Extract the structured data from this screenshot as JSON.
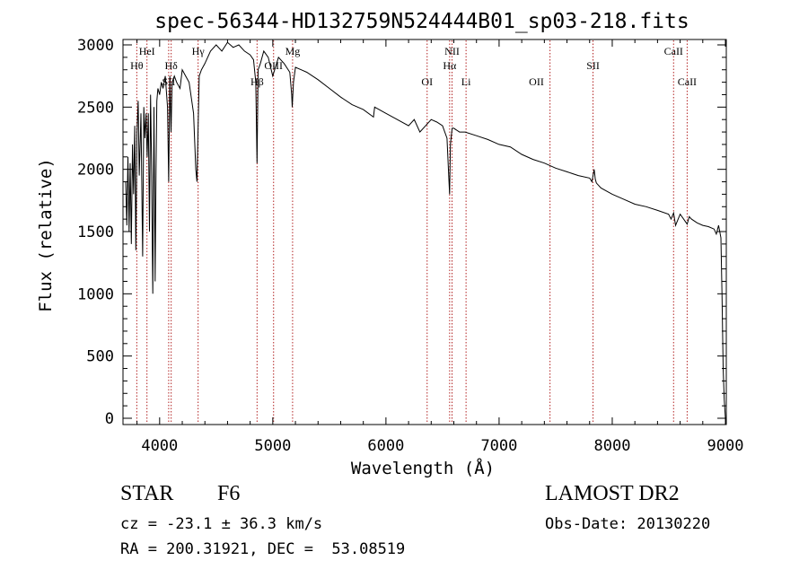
{
  "chart_data": {
    "type": "line",
    "title": "spec-56344-HD132759N524444B01_sp03-218.fits",
    "xlabel": "Wavelength (Å)",
    "ylabel": "Flux (relative)",
    "xlim": [
      3700,
      9000
    ],
    "ylim": [
      0,
      3000
    ],
    "xticks": [
      "4000",
      "5000",
      "6000",
      "7000",
      "8000",
      "9000"
    ],
    "yticks": [
      "0",
      "500",
      "1000",
      "1500",
      "2000",
      "2500",
      "3000"
    ],
    "grid": false,
    "series": [
      {
        "x": [
          3700,
          3710,
          3720,
          3730,
          3740,
          3750,
          3760,
          3770,
          3780,
          3790,
          3800,
          3810,
          3820,
          3835,
          3850,
          3860,
          3870,
          3880,
          3890,
          3900,
          3910,
          3920,
          3930,
          3935,
          3940,
          3950,
          3960,
          3968,
          3975,
          3985,
          4000,
          4015,
          4030,
          4050,
          4070,
          4080,
          4090,
          4101,
          4110,
          4130,
          4150,
          4180,
          4200,
          4230,
          4260,
          4300,
          4320,
          4330,
          4340,
          4350,
          4370,
          4400,
          4450,
          4500,
          4550,
          4600,
          4650,
          4700,
          4750,
          4800,
          4830,
          4850,
          4861,
          4870,
          4890,
          4920,
          4960,
          5000,
          5050,
          5100,
          5150,
          5167,
          5172,
          5183,
          5200,
          5250,
          5300,
          5400,
          5500,
          5600,
          5700,
          5800,
          5890,
          5900,
          6000,
          6100,
          6200,
          6250,
          6300,
          6400,
          6450,
          6500,
          6540,
          6555,
          6563,
          6570,
          6585,
          6600,
          6650,
          6700,
          6800,
          6900,
          7000,
          7100,
          7200,
          7300,
          7400,
          7500,
          7600,
          7700,
          7800,
          7820,
          7840,
          7850,
          7860,
          7900,
          8000,
          8100,
          8200,
          8300,
          8400,
          8498,
          8520,
          8542,
          8560,
          8600,
          8662,
          8680,
          8700,
          8750,
          8800,
          8850,
          8900,
          8920,
          8940,
          8960,
          8970,
          8980,
          8990,
          9000
        ],
        "y": [
          1900,
          1550,
          2100,
          1500,
          2050,
          1400,
          2200,
          1800,
          2350,
          1350,
          2300,
          2550,
          1950,
          2450,
          1300,
          2500,
          2250,
          2450,
          2100,
          2450,
          1500,
          2600,
          1950,
          1400,
          1000,
          2500,
          1100,
          2000,
          2550,
          2650,
          2600,
          2700,
          2650,
          2750,
          2500,
          1900,
          2750,
          2300,
          2700,
          2750,
          2700,
          2650,
          2800,
          2750,
          2700,
          2450,
          2000,
          1900,
          2350,
          2750,
          2800,
          2850,
          2950,
          3000,
          2950,
          3020,
          2980,
          3000,
          2950,
          2920,
          2880,
          2700,
          2050,
          2800,
          2850,
          2950,
          2900,
          2750,
          2900,
          2850,
          2780,
          2600,
          2500,
          2700,
          2820,
          2800,
          2780,
          2720,
          2650,
          2580,
          2520,
          2480,
          2420,
          2500,
          2450,
          2400,
          2350,
          2400,
          2300,
          2400,
          2380,
          2350,
          2250,
          1950,
          1800,
          2200,
          2330,
          2330,
          2300,
          2300,
          2270,
          2240,
          2200,
          2180,
          2120,
          2080,
          2050,
          2010,
          1980,
          1950,
          1930,
          1900,
          2000,
          1920,
          1890,
          1850,
          1800,
          1760,
          1720,
          1700,
          1670,
          1640,
          1600,
          1650,
          1550,
          1640,
          1560,
          1620,
          1600,
          1570,
          1550,
          1540,
          1520,
          1480,
          1550,
          1450,
          1000,
          400,
          150,
          0
        ],
        "color": "#000000"
      }
    ],
    "annotations": [
      {
        "label": "HeI",
        "x": 3888,
        "row": 1
      },
      {
        "label": "Hθ",
        "x": 3798,
        "row": 2
      },
      {
        "label": "Hδ",
        "x": 4102,
        "row": 2
      },
      {
        "label": "SII",
        "x": 4080,
        "row": 3
      },
      {
        "label": "Hγ",
        "x": 4340,
        "row": 1
      },
      {
        "label": "Mg",
        "x": 5175,
        "row": 1
      },
      {
        "label": "OIII",
        "x": 5007,
        "row": 2
      },
      {
        "label": "Hβ",
        "x": 4861,
        "row": 3
      },
      {
        "label": "NII",
        "x": 6584,
        "row": 1
      },
      {
        "label": "Hα",
        "x": 6563,
        "row": 2
      },
      {
        "label": "OI",
        "x": 6364,
        "row": 3
      },
      {
        "label": "Li",
        "x": 6708,
        "row": 3
      },
      {
        "label": "OII",
        "x": 7330,
        "row": 3
      },
      {
        "label": "SII",
        "x": 7830,
        "row": 2
      },
      {
        "label": "CaII",
        "x": 8542,
        "row": 1
      },
      {
        "label": "CaII",
        "x": 8662,
        "row": 3
      }
    ],
    "line_markers": [
      3798,
      3888,
      4102,
      4080,
      4340,
      4861,
      5007,
      5175,
      6364,
      6563,
      6584,
      6708,
      7450,
      7830,
      8542,
      8662
    ]
  },
  "info": {
    "object_class": "STAR",
    "subclass": "F6",
    "survey": "LAMOST DR2",
    "redshift": "cz = -23.1 ± 36.3 km/s",
    "obs_date": "Obs-Date: 20130220",
    "coords": "RA = 200.31921, DEC =  53.08519"
  }
}
